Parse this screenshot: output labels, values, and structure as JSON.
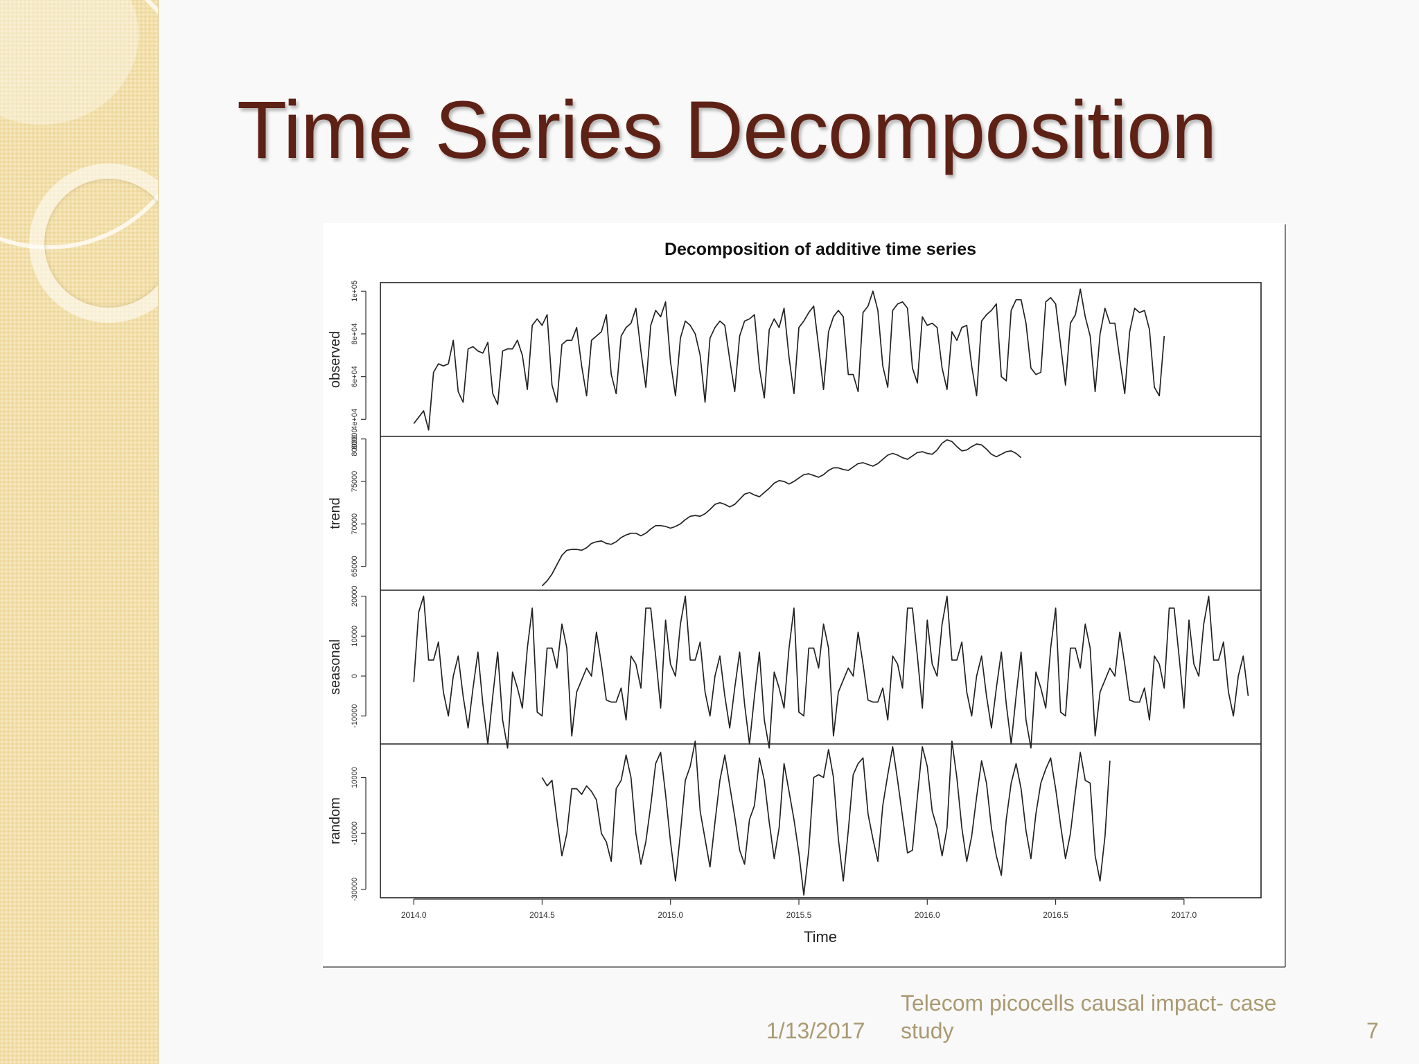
{
  "slide": {
    "title": "Time Series Decomposition",
    "footer_date": "1/13/2017",
    "footer_text": "Telecom picocells causal impact- case study",
    "page_number": "7",
    "colors": {
      "title": "#5e2115",
      "panel": "#f2dfa9",
      "footer": "#aa9a72",
      "line": "#222222"
    }
  },
  "chart_data": {
    "type": "line",
    "title": "Decomposition of additive time series",
    "xlabel": "Time",
    "xlim": [
      2013.87,
      2017.3
    ],
    "x_ticks": [
      2014.0,
      2014.5,
      2015.0,
      2015.5,
      2016.0,
      2016.5,
      2017.0
    ],
    "x_tick_labels": [
      "2014.0",
      "2014.5",
      "2015.0",
      "2015.5",
      "2016.0",
      "2016.5",
      "2017.0"
    ],
    "x_start": 2014.0,
    "frequency": 52,
    "panels": [
      {
        "name": "observed",
        "ylim": [
          32000,
          104000
        ],
        "ticks": [
          40000,
          60000,
          80000,
          100000
        ],
        "tick_labels": [
          "4e+04",
          "6e+04",
          "8e+04",
          "1e+05"
        ],
        "extra_labels": [
          "80000"
        ],
        "x_offset": 0,
        "values": [
          38000,
          41000,
          44000,
          35000,
          62000,
          66000,
          65000,
          66000,
          77000,
          53000,
          48000,
          73000,
          74000,
          72000,
          71000,
          76000,
          52000,
          47000,
          72000,
          73000,
          73000,
          77000,
          70000,
          54000,
          84000,
          87000,
          84000,
          89000,
          56000,
          48000,
          75000,
          77000,
          77000,
          83000,
          65000,
          51000,
          77000,
          79000,
          81000,
          89000,
          61000,
          52000,
          79000,
          83000,
          85000,
          92000,
          72000,
          55000,
          84000,
          91000,
          88000,
          95000,
          67000,
          51000,
          78000,
          86000,
          84000,
          80000,
          70000,
          48000,
          78000,
          83000,
          86000,
          84000,
          68000,
          53000,
          79000,
          86000,
          87000,
          89000,
          64000,
          50000,
          82000,
          87000,
          83000,
          92000,
          69000,
          52000,
          83000,
          86000,
          90000,
          93000,
          74000,
          54000,
          81000,
          88000,
          91000,
          88000,
          61000,
          61000,
          53000,
          90000,
          93000,
          100000,
          91000,
          65000,
          55000,
          91000,
          94000,
          95000,
          92000,
          64000,
          57000,
          88000,
          84000,
          85000,
          83000,
          64000,
          54000,
          81000,
          77000,
          83000,
          84000,
          65000,
          51000,
          86000,
          89000,
          91000,
          94000,
          60000,
          58000,
          91000,
          96000,
          96000,
          85000,
          64000,
          61000,
          62000,
          95000,
          97000,
          94000,
          75000,
          56000,
          85000,
          89000,
          101000,
          88000,
          79000,
          53000,
          80000,
          92000,
          85000,
          85000,
          68000,
          52000,
          81000,
          92000,
          90000,
          91000,
          82000,
          55000,
          51000,
          79000
        ]
      },
      {
        "name": "trend",
        "ylim": [
          62200,
          80300
        ],
        "ticks": [
          65000,
          70000,
          75000,
          80000
        ],
        "tick_labels": [
          "65000",
          "70000",
          "75000",
          "80000"
        ],
        "x_offset": 26,
        "values": [
          62700,
          63300,
          64100,
          65200,
          66300,
          66900,
          67000,
          67000,
          66900,
          67200,
          67700,
          67900,
          68000,
          67700,
          67600,
          67900,
          68400,
          68700,
          68900,
          68900,
          68600,
          68900,
          69400,
          69800,
          69800,
          69700,
          69500,
          69700,
          70000,
          70500,
          70900,
          71000,
          70900,
          71200,
          71700,
          72300,
          72500,
          72300,
          72000,
          72300,
          72900,
          73500,
          73700,
          73400,
          73200,
          73700,
          74200,
          74800,
          75100,
          75000,
          74700,
          75000,
          75400,
          75800,
          75900,
          75700,
          75500,
          75800,
          76300,
          76600,
          76600,
          76400,
          76300,
          76700,
          77100,
          77200,
          77000,
          76800,
          77100,
          77600,
          78100,
          78300,
          78100,
          77800,
          77600,
          78000,
          78400,
          78500,
          78300,
          78200,
          78700,
          79500,
          79900,
          79700,
          79100,
          78600,
          78700,
          79100,
          79400,
          79300,
          78800,
          78200,
          77900,
          78200,
          78500,
          78600,
          78300,
          77800
        ]
      },
      {
        "name": "seasonal",
        "ylim": [
          -17000,
          21500
        ],
        "ticks": [
          -10000,
          0,
          10000,
          20000
        ],
        "tick_labels": [
          "-10000",
          "0",
          "10000",
          "20000"
        ],
        "x_offset": 0,
        "values": [
          -1500,
          16000,
          20000,
          4000,
          4000,
          8500,
          -4000,
          -10000,
          0,
          5000,
          -5000,
          -13000,
          -3000,
          6000,
          -7000,
          -17000,
          -5000,
          6000,
          -11000,
          -18000,
          1000,
          -3000,
          -8000,
          7000,
          17000,
          -9000,
          -10000,
          7000,
          7000,
          2000,
          13000,
          7000,
          -15000,
          -4000,
          -1000,
          2000,
          0,
          11000,
          3000,
          -6000,
          -6500,
          -6500,
          -3000,
          -11000,
          5000,
          3000,
          -3000,
          17000,
          17000,
          5000,
          -8000,
          14000,
          3000,
          0,
          13000,
          20000,
          4000,
          4000,
          8500,
          -4000,
          -10000,
          0,
          5000,
          -5000,
          -13000,
          -3000,
          6000,
          -7000,
          -17000,
          -5000,
          6000,
          -11000,
          -18000,
          1000,
          -3000,
          -8000,
          7000,
          17000,
          -9000,
          -10000,
          7000,
          7000,
          2000,
          13000,
          7000,
          -15000,
          -4000,
          -1000,
          2000,
          0,
          11000,
          3000,
          -6000,
          -6500,
          -6500,
          -3000,
          -11000,
          5000,
          3000,
          -3000,
          17000,
          17000,
          5000,
          -8000,
          14000,
          3000,
          0,
          13000,
          20000,
          4000,
          4000,
          8500,
          -4000,
          -10000,
          0,
          5000,
          -5000,
          -13000,
          -3000,
          6000,
          -7000,
          -17000,
          -5000,
          6000,
          -11000,
          -18000,
          1000,
          -3000,
          -8000,
          7000,
          17000,
          -9000,
          -10000,
          7000,
          7000,
          2000,
          13000,
          7000,
          -15000,
          -4000,
          -1000,
          2000,
          0,
          11000,
          3000,
          -6000,
          -6500,
          -6500,
          -3000,
          -11000,
          5000,
          3000,
          -3000,
          17000,
          17000,
          5000,
          -8000,
          14000,
          3000,
          0,
          13000,
          20000,
          4000,
          4000,
          8500,
          -4000,
          -10000,
          0,
          5000,
          -5000
        ]
      },
      {
        "name": "random",
        "ylim": [
          -33000,
          22000
        ],
        "ticks": [
          -30000,
          -10000,
          10000
        ],
        "tick_labels": [
          "-30000",
          "-10000",
          "10000"
        ],
        "x_offset": 26,
        "values": [
          10000,
          7000,
          9000,
          -5000,
          -18000,
          -10000,
          6000,
          6000,
          4000,
          7000,
          5000,
          2000,
          -10000,
          -13000,
          -20000,
          6000,
          9000,
          18000,
          10000,
          -10000,
          -21000,
          -13000,
          0,
          15000,
          19000,
          4000,
          -13000,
          -27000,
          -10000,
          9000,
          14000,
          23000,
          -2000,
          -12000,
          -22000,
          -6000,
          9000,
          18000,
          7000,
          -4000,
          -16000,
          -21000,
          -5000,
          0,
          17000,
          9000,
          -6000,
          -19000,
          -8000,
          15000,
          5000,
          -5000,
          -17000,
          -32000,
          -16000,
          10000,
          11000,
          10000,
          20000,
          10000,
          -12000,
          -27000,
          -9000,
          11000,
          15000,
          17000,
          -3000,
          -12000,
          -20000,
          0,
          11000,
          21000,
          9000,
          -4000,
          -17000,
          -16000,
          3000,
          21000,
          14000,
          -2000,
          -8000,
          -18000,
          -8000,
          23000,
          10000,
          -8000,
          -20000,
          -11000,
          3000,
          16000,
          8000,
          -8000,
          -18000,
          -25000,
          -5000,
          8000,
          15000,
          6000,
          -9000,
          -19000,
          -3000,
          8000,
          13000,
          17000,
          6000,
          -7000,
          -19000,
          -10000,
          5000,
          19000,
          9000,
          8000,
          -18000,
          -27000,
          -11000,
          16000
        ]
      }
    ]
  }
}
